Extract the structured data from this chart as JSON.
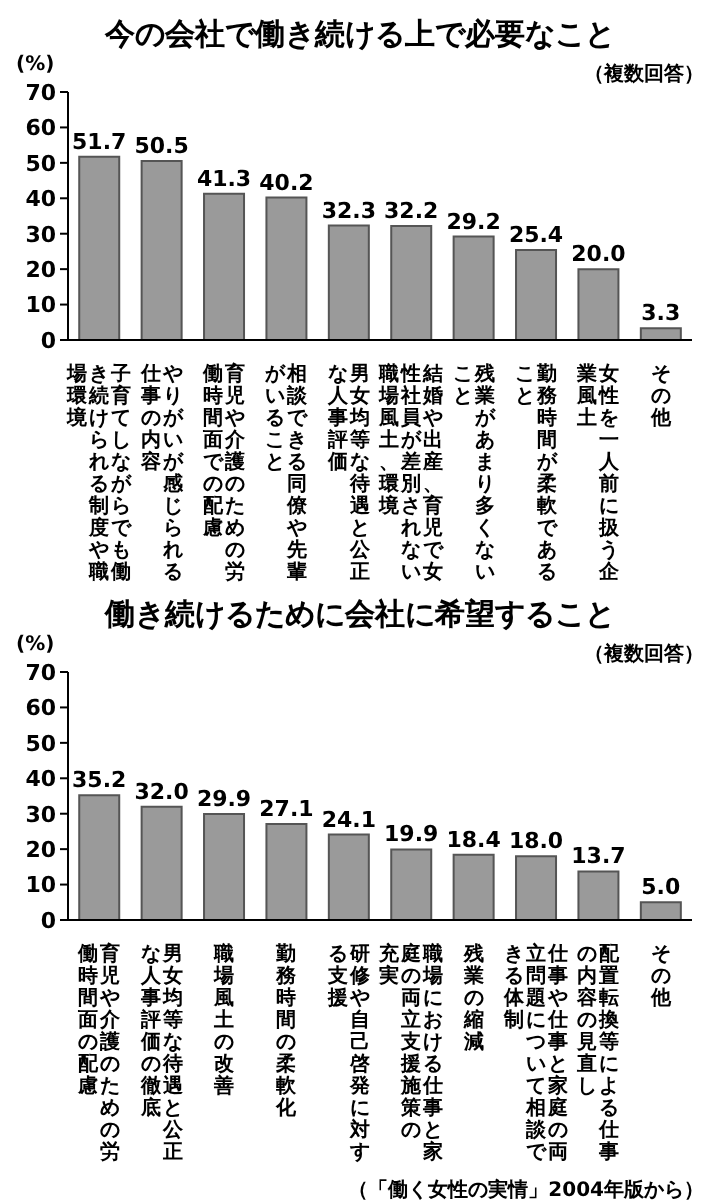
{
  "chart_data": [
    {
      "type": "bar",
      "title": "今の会社で働き続ける上で必要なこと",
      "ylabel": "(%)",
      "annotations": [
        "（複数回答）"
      ],
      "categories": [
        "子育てしながらでも働き続けられる制度や職場環境",
        "やりがいが感じられる仕事の内容",
        "育児や介護のための労働時間面での配慮",
        "相談できる同僚や先輩がいること",
        "男女均等な待遇と公正な人事評価",
        "結婚や出産、育児で女性社員が差別されない職場風土、環境",
        "残業があまり多くないこと",
        "勤務時間が柔軟であること",
        "女性を一人前に扱う企業風土",
        "その他"
      ],
      "values": [
        51.7,
        50.5,
        41.3,
        40.2,
        32.3,
        32.2,
        29.2,
        25.4,
        20.0,
        3.3
      ],
      "value_labels": [
        "51.7",
        "50.5",
        "41.3",
        "40.2",
        "32.3",
        "32.2",
        "29.2",
        "25.4",
        "20.0",
        "3.3"
      ],
      "color": "#9a9a9a",
      "ylim": [
        0,
        70
      ],
      "yticks": [
        0,
        10,
        20,
        30,
        40,
        50,
        60,
        70
      ],
      "grid": false,
      "legend": false
    },
    {
      "type": "bar",
      "title": "働き続けるために会社に希望すること",
      "ylabel": "(%)",
      "annotations": [
        "（複数回答）",
        "（「働く女性の実情」2004年版から）"
      ],
      "categories": [
        "育児や介護のための労働時間面の配慮",
        "男女均等な待遇と公正な人事評価の徹底",
        "職場風土の改善",
        "勤務時間の柔軟化",
        "研修や自己啓発に対する支援",
        "職場における仕事と家庭の両立支援施策の充実",
        "残業の縮減",
        "仕事や仕事と家庭の両立問題について相談できる体制",
        "配置転換等による仕事の内容の見直し",
        "その他"
      ],
      "values": [
        35.2,
        32.0,
        29.9,
        27.1,
        24.1,
        19.9,
        18.4,
        18.0,
        13.7,
        5.0
      ],
      "value_labels": [
        "35.2",
        "32.0",
        "29.9",
        "27.1",
        "24.1",
        "19.9",
        "18.4",
        "18.0",
        "13.7",
        "5.0"
      ],
      "color": "#9a9a9a",
      "ylim": [
        0,
        70
      ],
      "yticks": [
        0,
        10,
        20,
        30,
        40,
        50,
        60,
        70
      ],
      "grid": false,
      "legend": false
    }
  ]
}
